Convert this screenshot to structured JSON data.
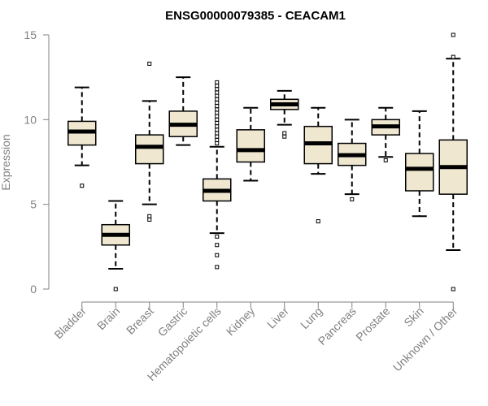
{
  "chart_data": {
    "type": "boxplot",
    "title": "ENSG00000079385 - CEACAM1",
    "xlabel": "",
    "ylabel": "Expression",
    "ylim": [
      0,
      15
    ],
    "yticks": [
      0,
      5,
      10,
      15
    ],
    "categories": [
      "Bladder",
      "Brain",
      "Breast",
      "Gastric",
      "Hematopoietic cells",
      "Kidney",
      "Liver",
      "Lung",
      "Pancreas",
      "Prostate",
      "Skin",
      "Unknown / Other"
    ],
    "boxes": [
      {
        "name": "Bladder",
        "whisker_low": 7.3,
        "q1": 8.5,
        "median": 9.3,
        "q3": 9.9,
        "whisker_high": 11.9,
        "outliers": [
          6.1
        ]
      },
      {
        "name": "Brain",
        "whisker_low": 1.2,
        "q1": 2.6,
        "median": 3.2,
        "q3": 3.8,
        "whisker_high": 5.2,
        "outliers": [
          0.0
        ]
      },
      {
        "name": "Breast",
        "whisker_low": 5.0,
        "q1": 7.4,
        "median": 8.4,
        "q3": 9.1,
        "whisker_high": 11.1,
        "outliers": [
          4.1,
          4.3,
          13.3
        ]
      },
      {
        "name": "Gastric",
        "whisker_low": 8.5,
        "q1": 9.0,
        "median": 9.7,
        "q3": 10.5,
        "whisker_high": 12.5,
        "outliers": []
      },
      {
        "name": "Hematopoietic cells",
        "whisker_low": 3.3,
        "q1": 5.2,
        "median": 5.8,
        "q3": 6.5,
        "whisker_high": 8.4,
        "outliers": [
          1.3,
          2.0,
          2.6,
          3.1,
          8.6,
          8.8,
          9.0,
          9.2,
          9.4,
          9.6,
          9.8,
          10.0,
          10.2,
          10.4,
          10.6,
          10.8,
          11.0,
          11.2,
          11.4,
          11.6,
          11.8,
          12.0,
          12.2
        ]
      },
      {
        "name": "Kidney",
        "whisker_low": 6.4,
        "q1": 7.5,
        "median": 8.2,
        "q3": 9.4,
        "whisker_high": 10.7,
        "outliers": []
      },
      {
        "name": "Liver",
        "whisker_low": 9.7,
        "q1": 10.6,
        "median": 10.9,
        "q3": 11.2,
        "whisker_high": 11.7,
        "outliers": [
          9.0,
          9.2
        ]
      },
      {
        "name": "Lung",
        "whisker_low": 6.8,
        "q1": 7.4,
        "median": 8.6,
        "q3": 9.6,
        "whisker_high": 10.7,
        "outliers": [
          4.0
        ]
      },
      {
        "name": "Pancreas",
        "whisker_low": 5.6,
        "q1": 7.3,
        "median": 7.9,
        "q3": 8.6,
        "whisker_high": 10.0,
        "outliers": [
          5.3
        ]
      },
      {
        "name": "Prostate",
        "whisker_low": 7.8,
        "q1": 9.1,
        "median": 9.6,
        "q3": 10.0,
        "whisker_high": 10.7,
        "outliers": [
          7.6
        ]
      },
      {
        "name": "Skin",
        "whisker_low": 4.3,
        "q1": 5.8,
        "median": 7.1,
        "q3": 8.0,
        "whisker_high": 10.5,
        "outliers": []
      },
      {
        "name": "Unknown / Other",
        "whisker_low": 2.3,
        "q1": 5.6,
        "median": 7.2,
        "q3": 8.8,
        "whisker_high": 13.6,
        "outliers": [
          0.0,
          13.7,
          15.0
        ]
      }
    ],
    "colors": {
      "box_fill": "#EFE7D0",
      "box_stroke": "#000000",
      "axis": "#808080",
      "text": "#808080"
    }
  }
}
